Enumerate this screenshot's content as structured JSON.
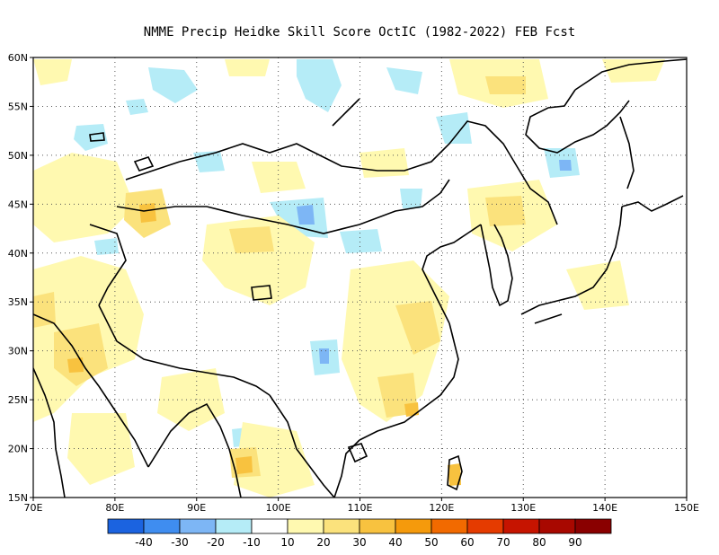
{
  "title": "NMME Precip Heidke Skill Score OctIC (1982-2022) FEB Fcst",
  "map": {
    "lon_range": [
      70,
      150
    ],
    "lat_range": [
      15,
      60
    ],
    "lon_ticks": [
      {
        "value": 70,
        "label": "70E"
      },
      {
        "value": 80,
        "label": "80E"
      },
      {
        "value": 90,
        "label": "90E"
      },
      {
        "value": 100,
        "label": "100E"
      },
      {
        "value": 110,
        "label": "110E"
      },
      {
        "value": 120,
        "label": "120E"
      },
      {
        "value": 130,
        "label": "130E"
      },
      {
        "value": 140,
        "label": "140E"
      },
      {
        "value": 150,
        "label": "150E"
      }
    ],
    "lat_ticks": [
      {
        "value": 15,
        "label": "15N"
      },
      {
        "value": 20,
        "label": "20N"
      },
      {
        "value": 25,
        "label": "25N"
      },
      {
        "value": 30,
        "label": "30N"
      },
      {
        "value": 35,
        "label": "35N"
      },
      {
        "value": 40,
        "label": "40N"
      },
      {
        "value": 45,
        "label": "45N"
      },
      {
        "value": 50,
        "label": "50N"
      },
      {
        "value": 55,
        "label": "55N"
      },
      {
        "value": 60,
        "label": "60N"
      }
    ],
    "grid": "dotted"
  },
  "colorbar": {
    "colors": [
      "#1b63e0",
      "#3f8df0",
      "#7db6f5",
      "#b5ecf7",
      "#ffffff",
      "#fff9b0",
      "#fbe27c",
      "#f8c23f",
      "#f59a0c",
      "#f26a00",
      "#e53b00",
      "#c61400",
      "#a80800",
      "#8a0000"
    ],
    "labels": [
      "-40",
      "-30",
      "-20",
      "-10",
      "10",
      "20",
      "30",
      "40",
      "50",
      "60",
      "70",
      "80",
      "90"
    ]
  }
}
